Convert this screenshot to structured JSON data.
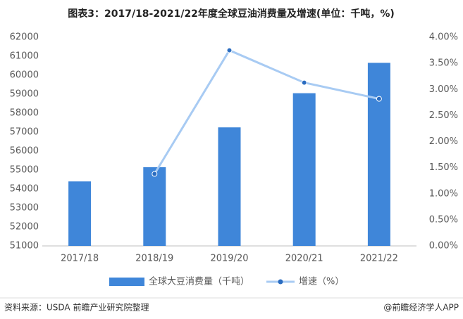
{
  "chart_data": {
    "type": "bar-line",
    "title": "图表3：2017/18-2021/22年度全球豆油消费量及增速(单位：千吨，%)",
    "categories": [
      "2017/18",
      "2018/19",
      "2019/20",
      "2020/21",
      "2021/22"
    ],
    "series": [
      {
        "name": "全球大豆消费量（千吨）",
        "type": "bar",
        "color": "#3f86d9",
        "values": [
          54400,
          55150,
          57250,
          59050,
          60650
        ]
      },
      {
        "name": "增速（%）",
        "type": "line",
        "axis": "y2",
        "color": "#a8cbf3",
        "marker_color": "#2a6cc0",
        "values": [
          null,
          1.38,
          3.75,
          3.13,
          2.82
        ]
      }
    ],
    "ylim": [
      51000,
      62000
    ],
    "yticks": [
      51000,
      52000,
      53000,
      54000,
      55000,
      56000,
      57000,
      58000,
      59000,
      60000,
      61000,
      62000
    ],
    "y2lim": [
      0,
      4
    ],
    "y2ticks": [
      {
        "value": 0,
        "label": "0.00%"
      },
      {
        "value": 0.5,
        "label": "0.50%"
      },
      {
        "value": 1,
        "label": "1.00%"
      },
      {
        "value": 1.5,
        "label": "1.50%"
      },
      {
        "value": 2,
        "label": "2.00%"
      },
      {
        "value": 2.5,
        "label": "2.50%"
      },
      {
        "value": 3,
        "label": "3.00%"
      },
      {
        "value": 3.5,
        "label": "3.50%"
      },
      {
        "value": 4,
        "label": "4.00%"
      }
    ],
    "grid": false,
    "source": "资料来源：USDA 前瞻产业研究院整理",
    "credit": "@前瞻经济学人APP"
  }
}
